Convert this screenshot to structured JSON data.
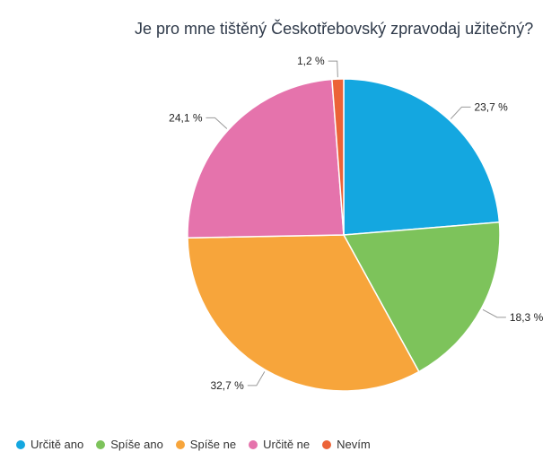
{
  "chart_data": {
    "type": "pie",
    "title": "Je pro mne tištěný Českotřebovský zpravodaj užitečný?",
    "slices": [
      {
        "name": "Určitě ano",
        "value": 23.7,
        "label": "23,7 %",
        "color": "#14a7e0"
      },
      {
        "name": "Spíše ano",
        "value": 18.3,
        "label": "18,3 %",
        "color": "#7dc35b"
      },
      {
        "name": "Spíše ne",
        "value": 32.7,
        "label": "32,7 %",
        "color": "#f7a53b"
      },
      {
        "name": "Určitě ne",
        "value": 24.1,
        "label": "24,1 %",
        "color": "#e573ac"
      },
      {
        "name": "Nevím",
        "value": 1.2,
        "label": "1,2 %",
        "color": "#ec6337"
      }
    ],
    "legend_position": "bottom-left"
  }
}
